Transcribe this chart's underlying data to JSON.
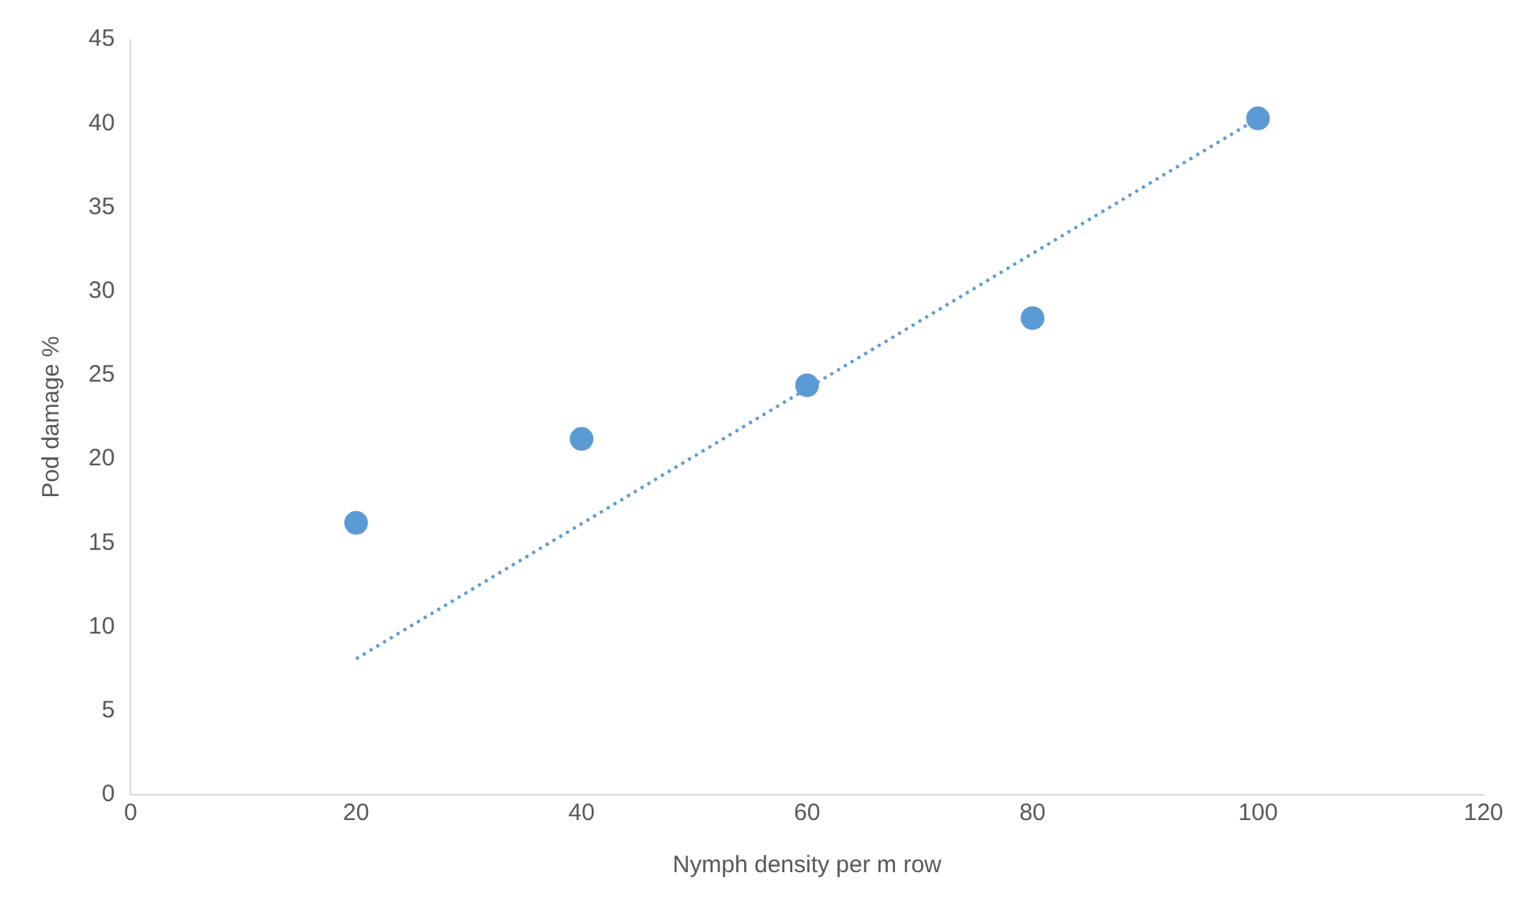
{
  "chart_data": {
    "type": "scatter",
    "xlabel": "Nymph density per m row",
    "ylabel": "Pod damage %",
    "x": [
      20,
      40,
      60,
      80,
      100
    ],
    "series": [
      {
        "type": "scatter",
        "color": "#5b9bd5",
        "values": [
          16.2,
          21.2,
          24.4,
          28.4,
          40.3
        ],
        "marker": "circle"
      },
      {
        "type": "line",
        "color": "#5b9bd5",
        "x": [
          20,
          100
        ],
        "values": [
          8.1,
          40.3
        ],
        "line_style": "dotted",
        "marker": "none"
      }
    ],
    "xlim": [
      0,
      120
    ],
    "xticks": [
      0,
      20,
      40,
      60,
      80,
      100,
      120
    ],
    "ylim": [
      0,
      45
    ],
    "yticks": [
      0,
      5,
      10,
      15,
      20,
      25,
      30,
      35,
      40,
      45
    ],
    "grid": false,
    "legend": false
  }
}
